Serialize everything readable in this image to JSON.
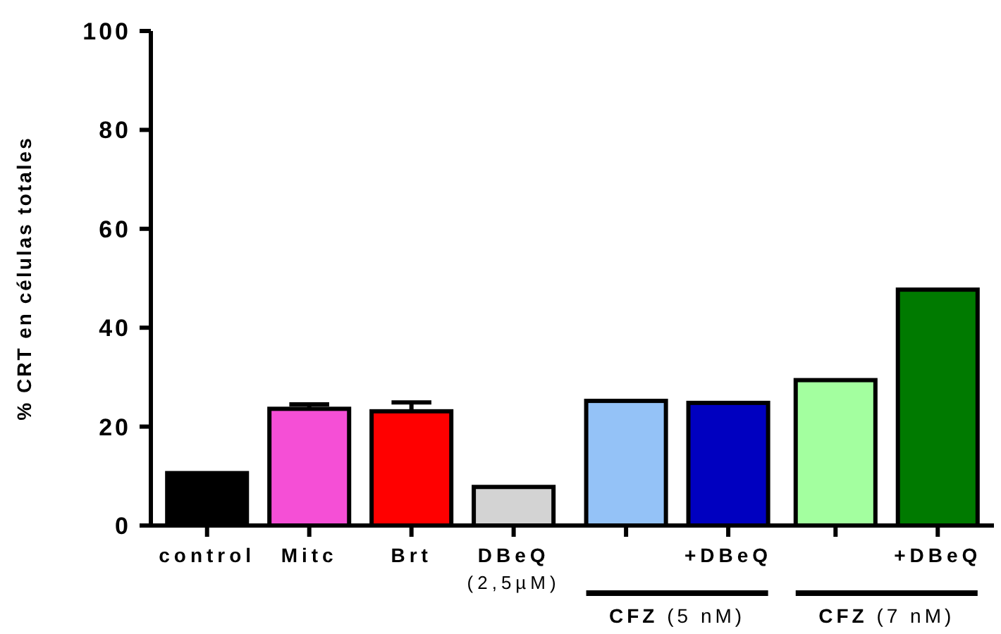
{
  "chart_data": {
    "type": "bar",
    "ylabel": "% CRT en células totales",
    "categories": [
      "control",
      "Mitc",
      "Brt",
      "DBeQ\n(2,5µM)",
      null,
      "+DBeQ",
      null,
      "+DBeQ"
    ],
    "values": [
      10.6,
      23.6,
      23.1,
      7.8,
      25.2,
      24.8,
      29.4,
      47.7
    ],
    "errors": [
      null,
      0.9,
      1.8,
      null,
      null,
      null,
      null,
      null
    ],
    "colors": [
      "#000000",
      "#f54fd6",
      "#ff0000",
      "#d3d3d3",
      "#94c2f7",
      "#0000c0",
      "#a3ff9f",
      "#007a00"
    ],
    "ylim": [
      0,
      100
    ],
    "yticks": [
      0,
      20,
      40,
      60,
      80,
      100
    ],
    "annotations": [
      "CFZ (5 nM)",
      "CFZ (7 nM)"
    ]
  }
}
